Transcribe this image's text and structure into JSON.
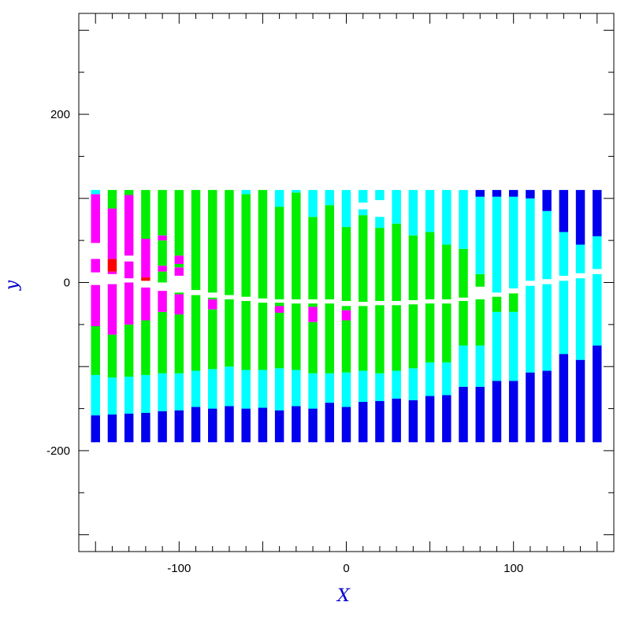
{
  "chart_data": {
    "type": "heatmap",
    "title": "",
    "xlabel": "X",
    "ylabel": "y",
    "xlim": [
      -160,
      160
    ],
    "ylim": [
      -320,
      320
    ],
    "x_ticks": [
      -100,
      0,
      100
    ],
    "x_tick_labels": [
      "-100",
      "0",
      "100"
    ],
    "y_ticks": [
      -200,
      0,
      200
    ],
    "y_tick_labels": [
      "-200",
      "0",
      "200"
    ],
    "grid": false,
    "legend": "none",
    "colors": {
      "magenta": "#ff00ff",
      "red": "#ff0000",
      "green": "#00ee00",
      "cyan": "#00ffff",
      "blue": "#0000ee",
      "gap": "#ffffff",
      "axis_title": "#0000cc"
    },
    "column_width": 5.4,
    "columns": [
      {
        "x": -150,
        "bands": [
          [
            "blue",
            -190,
            -158
          ],
          [
            "cyan",
            -158,
            -110
          ],
          [
            "green",
            -110,
            -52
          ],
          [
            "magenta",
            -52,
            -3
          ],
          [
            "magenta",
            12,
            28
          ],
          [
            "magenta",
            47,
            105
          ],
          [
            "cyan",
            105,
            110
          ]
        ]
      },
      {
        "x": -140,
        "bands": [
          [
            "blue",
            -190,
            -157
          ],
          [
            "cyan",
            -157,
            -113
          ],
          [
            "green",
            -113,
            -62
          ],
          [
            "magenta",
            -62,
            -2
          ],
          [
            "magenta",
            10,
            13
          ],
          [
            "red",
            13,
            28
          ],
          [
            "magenta",
            28,
            88
          ],
          [
            "green",
            88,
            110
          ]
        ]
      },
      {
        "x": -130,
        "bands": [
          [
            "blue",
            -190,
            -156
          ],
          [
            "cyan",
            -156,
            -112
          ],
          [
            "green",
            -112,
            -50
          ],
          [
            "magenta",
            -50,
            0
          ],
          [
            "magenta",
            5,
            25
          ],
          [
            "magenta",
            32,
            104
          ],
          [
            "green",
            104,
            110
          ]
        ]
      },
      {
        "x": -120,
        "bands": [
          [
            "blue",
            -190,
            -155
          ],
          [
            "cyan",
            -155,
            -110
          ],
          [
            "green",
            -110,
            -45
          ],
          [
            "magenta",
            -45,
            -6
          ],
          [
            "red",
            2,
            6
          ],
          [
            "magenta",
            6,
            52
          ],
          [
            "green",
            52,
            110
          ]
        ]
      },
      {
        "x": -110,
        "bands": [
          [
            "blue",
            -190,
            -153
          ],
          [
            "cyan",
            -153,
            -108
          ],
          [
            "green",
            -108,
            -35
          ],
          [
            "magenta",
            -35,
            -10
          ],
          [
            "green",
            0,
            13
          ],
          [
            "magenta",
            13,
            20
          ],
          [
            "green",
            20,
            50
          ],
          [
            "magenta",
            50,
            56
          ],
          [
            "green",
            56,
            110
          ]
        ]
      },
      {
        "x": -100,
        "bands": [
          [
            "blue",
            -190,
            -152
          ],
          [
            "cyan",
            -152,
            -108
          ],
          [
            "green",
            -108,
            -38
          ],
          [
            "magenta",
            -38,
            -14
          ],
          [
            "green",
            -14,
            -12
          ],
          [
            "magenta",
            8,
            18
          ],
          [
            "green",
            18,
            22
          ],
          [
            "magenta",
            22,
            32
          ],
          [
            "green",
            32,
            110
          ]
        ]
      },
      {
        "x": -90,
        "bands": [
          [
            "blue",
            -190,
            -148
          ],
          [
            "cyan",
            -148,
            -105
          ],
          [
            "green",
            -105,
            -15
          ],
          [
            "green",
            -9,
            110
          ]
        ]
      },
      {
        "x": -80,
        "bands": [
          [
            "blue",
            -190,
            -150
          ],
          [
            "cyan",
            -150,
            -103
          ],
          [
            "green",
            -103,
            -32
          ],
          [
            "magenta",
            -32,
            -20
          ],
          [
            "green",
            -20,
            -18
          ],
          [
            "green",
            -12,
            110
          ]
        ]
      },
      {
        "x": -70,
        "bands": [
          [
            "blue",
            -190,
            -147
          ],
          [
            "cyan",
            -147,
            -100
          ],
          [
            "green",
            -100,
            -20
          ],
          [
            "green",
            -15,
            110
          ]
        ]
      },
      {
        "x": -60,
        "bands": [
          [
            "blue",
            -190,
            -150
          ],
          [
            "cyan",
            -150,
            -104
          ],
          [
            "green",
            -104,
            -22
          ],
          [
            "green",
            -17,
            105
          ],
          [
            "cyan",
            105,
            110
          ]
        ]
      },
      {
        "x": -50,
        "bands": [
          [
            "blue",
            -190,
            -149
          ],
          [
            "cyan",
            -149,
            -104
          ],
          [
            "green",
            -104,
            -24
          ],
          [
            "green",
            -19,
            110
          ]
        ]
      },
      {
        "x": -40,
        "bands": [
          [
            "blue",
            -190,
            -152
          ],
          [
            "cyan",
            -152,
            -102
          ],
          [
            "green",
            -102,
            -24
          ],
          [
            "magenta",
            -36,
            -28
          ],
          [
            "green",
            -20,
            90
          ],
          [
            "cyan",
            90,
            110
          ]
        ]
      },
      {
        "x": -30,
        "bands": [
          [
            "blue",
            -190,
            -147
          ],
          [
            "cyan",
            -147,
            -104
          ],
          [
            "green",
            -104,
            -25
          ],
          [
            "green",
            -20,
            107
          ],
          [
            "cyan",
            107,
            110
          ]
        ]
      },
      {
        "x": -20,
        "bands": [
          [
            "blue",
            -190,
            -150
          ],
          [
            "cyan",
            -150,
            -108
          ],
          [
            "green",
            -108,
            -47
          ],
          [
            "magenta",
            -47,
            -29
          ],
          [
            "green",
            -29,
            -25
          ],
          [
            "green",
            -20,
            78
          ],
          [
            "cyan",
            78,
            110
          ]
        ]
      },
      {
        "x": -10,
        "bands": [
          [
            "blue",
            -190,
            -143
          ],
          [
            "cyan",
            -143,
            -108
          ],
          [
            "green",
            -108,
            -25
          ],
          [
            "green",
            -20,
            92
          ],
          [
            "cyan",
            92,
            110
          ]
        ]
      },
      {
        "x": 0,
        "bands": [
          [
            "blue",
            -190,
            -148
          ],
          [
            "cyan",
            -148,
            -107
          ],
          [
            "green",
            -107,
            -45
          ],
          [
            "magenta",
            -45,
            -33
          ],
          [
            "green",
            -33,
            -28
          ],
          [
            "green",
            -22,
            66
          ],
          [
            "cyan",
            66,
            110
          ]
        ]
      },
      {
        "x": 10,
        "bands": [
          [
            "blue",
            -190,
            -142
          ],
          [
            "cyan",
            -142,
            -105
          ],
          [
            "green",
            -105,
            -28
          ],
          [
            "green",
            -23,
            80
          ],
          [
            "cyan",
            80,
            87
          ],
          [
            "cyan",
            95,
            110
          ]
        ]
      },
      {
        "x": 20,
        "bands": [
          [
            "blue",
            -190,
            -141
          ],
          [
            "cyan",
            -141,
            -108
          ],
          [
            "green",
            -108,
            -27
          ],
          [
            "green",
            -22,
            65
          ],
          [
            "cyan",
            65,
            78
          ],
          [
            "cyan",
            98,
            110
          ]
        ]
      },
      {
        "x": 30,
        "bands": [
          [
            "blue",
            -190,
            -138
          ],
          [
            "cyan",
            -138,
            -105
          ],
          [
            "green",
            -105,
            -27
          ],
          [
            "green",
            -22,
            70
          ],
          [
            "cyan",
            70,
            110
          ]
        ]
      },
      {
        "x": 40,
        "bands": [
          [
            "blue",
            -190,
            -140
          ],
          [
            "cyan",
            -140,
            -102
          ],
          [
            "green",
            -102,
            -26
          ],
          [
            "green",
            -21,
            56
          ],
          [
            "cyan",
            56,
            110
          ]
        ]
      },
      {
        "x": 50,
        "bands": [
          [
            "blue",
            -190,
            -135
          ],
          [
            "cyan",
            -135,
            -95
          ],
          [
            "green",
            -95,
            -25
          ],
          [
            "green",
            -20,
            60
          ],
          [
            "cyan",
            60,
            110
          ]
        ]
      },
      {
        "x": 60,
        "bands": [
          [
            "blue",
            -190,
            -134
          ],
          [
            "cyan",
            -134,
            -95
          ],
          [
            "green",
            -95,
            -25
          ],
          [
            "green",
            -20,
            45
          ],
          [
            "cyan",
            45,
            110
          ]
        ]
      },
      {
        "x": 70,
        "bands": [
          [
            "blue",
            -190,
            -124
          ],
          [
            "cyan",
            -124,
            -75
          ],
          [
            "green",
            -75,
            -22
          ],
          [
            "green",
            -18,
            40
          ],
          [
            "cyan",
            40,
            110
          ]
        ]
      },
      {
        "x": 80,
        "bands": [
          [
            "blue",
            -190,
            -124
          ],
          [
            "cyan",
            -124,
            -75
          ],
          [
            "green",
            -75,
            -20
          ],
          [
            "green",
            -5,
            10
          ],
          [
            "cyan",
            10,
            102
          ],
          [
            "blue",
            102,
            110
          ]
        ]
      },
      {
        "x": 90,
        "bands": [
          [
            "blue",
            -190,
            -117
          ],
          [
            "cyan",
            -117,
            -35
          ],
          [
            "green",
            -35,
            -17
          ],
          [
            "cyan",
            -12,
            102
          ],
          [
            "blue",
            102,
            110
          ]
        ]
      },
      {
        "x": 100,
        "bands": [
          [
            "blue",
            -190,
            -117
          ],
          [
            "cyan",
            -117,
            -35
          ],
          [
            "green",
            -35,
            -13
          ],
          [
            "cyan",
            -7,
            102
          ],
          [
            "blue",
            102,
            110
          ]
        ]
      },
      {
        "x": 110,
        "bands": [
          [
            "blue",
            -190,
            -107
          ],
          [
            "cyan",
            -107,
            -4
          ],
          [
            "cyan",
            2,
            100
          ],
          [
            "blue",
            100,
            110
          ]
        ]
      },
      {
        "x": 120,
        "bands": [
          [
            "blue",
            -190,
            -105
          ],
          [
            "cyan",
            -105,
            -2
          ],
          [
            "cyan",
            4,
            85
          ],
          [
            "blue",
            85,
            110
          ]
        ]
      },
      {
        "x": 130,
        "bands": [
          [
            "blue",
            -190,
            -85
          ],
          [
            "cyan",
            -85,
            2
          ],
          [
            "cyan",
            8,
            60
          ],
          [
            "blue",
            60,
            110
          ]
        ]
      },
      {
        "x": 140,
        "bands": [
          [
            "blue",
            -190,
            -92
          ],
          [
            "cyan",
            -92,
            5
          ],
          [
            "cyan",
            11,
            45
          ],
          [
            "blue",
            45,
            110
          ]
        ]
      },
      {
        "x": 150,
        "bands": [
          [
            "blue",
            -190,
            -75
          ],
          [
            "cyan",
            -75,
            10
          ],
          [
            "cyan",
            16,
            55
          ],
          [
            "blue",
            55,
            110
          ]
        ]
      }
    ]
  }
}
